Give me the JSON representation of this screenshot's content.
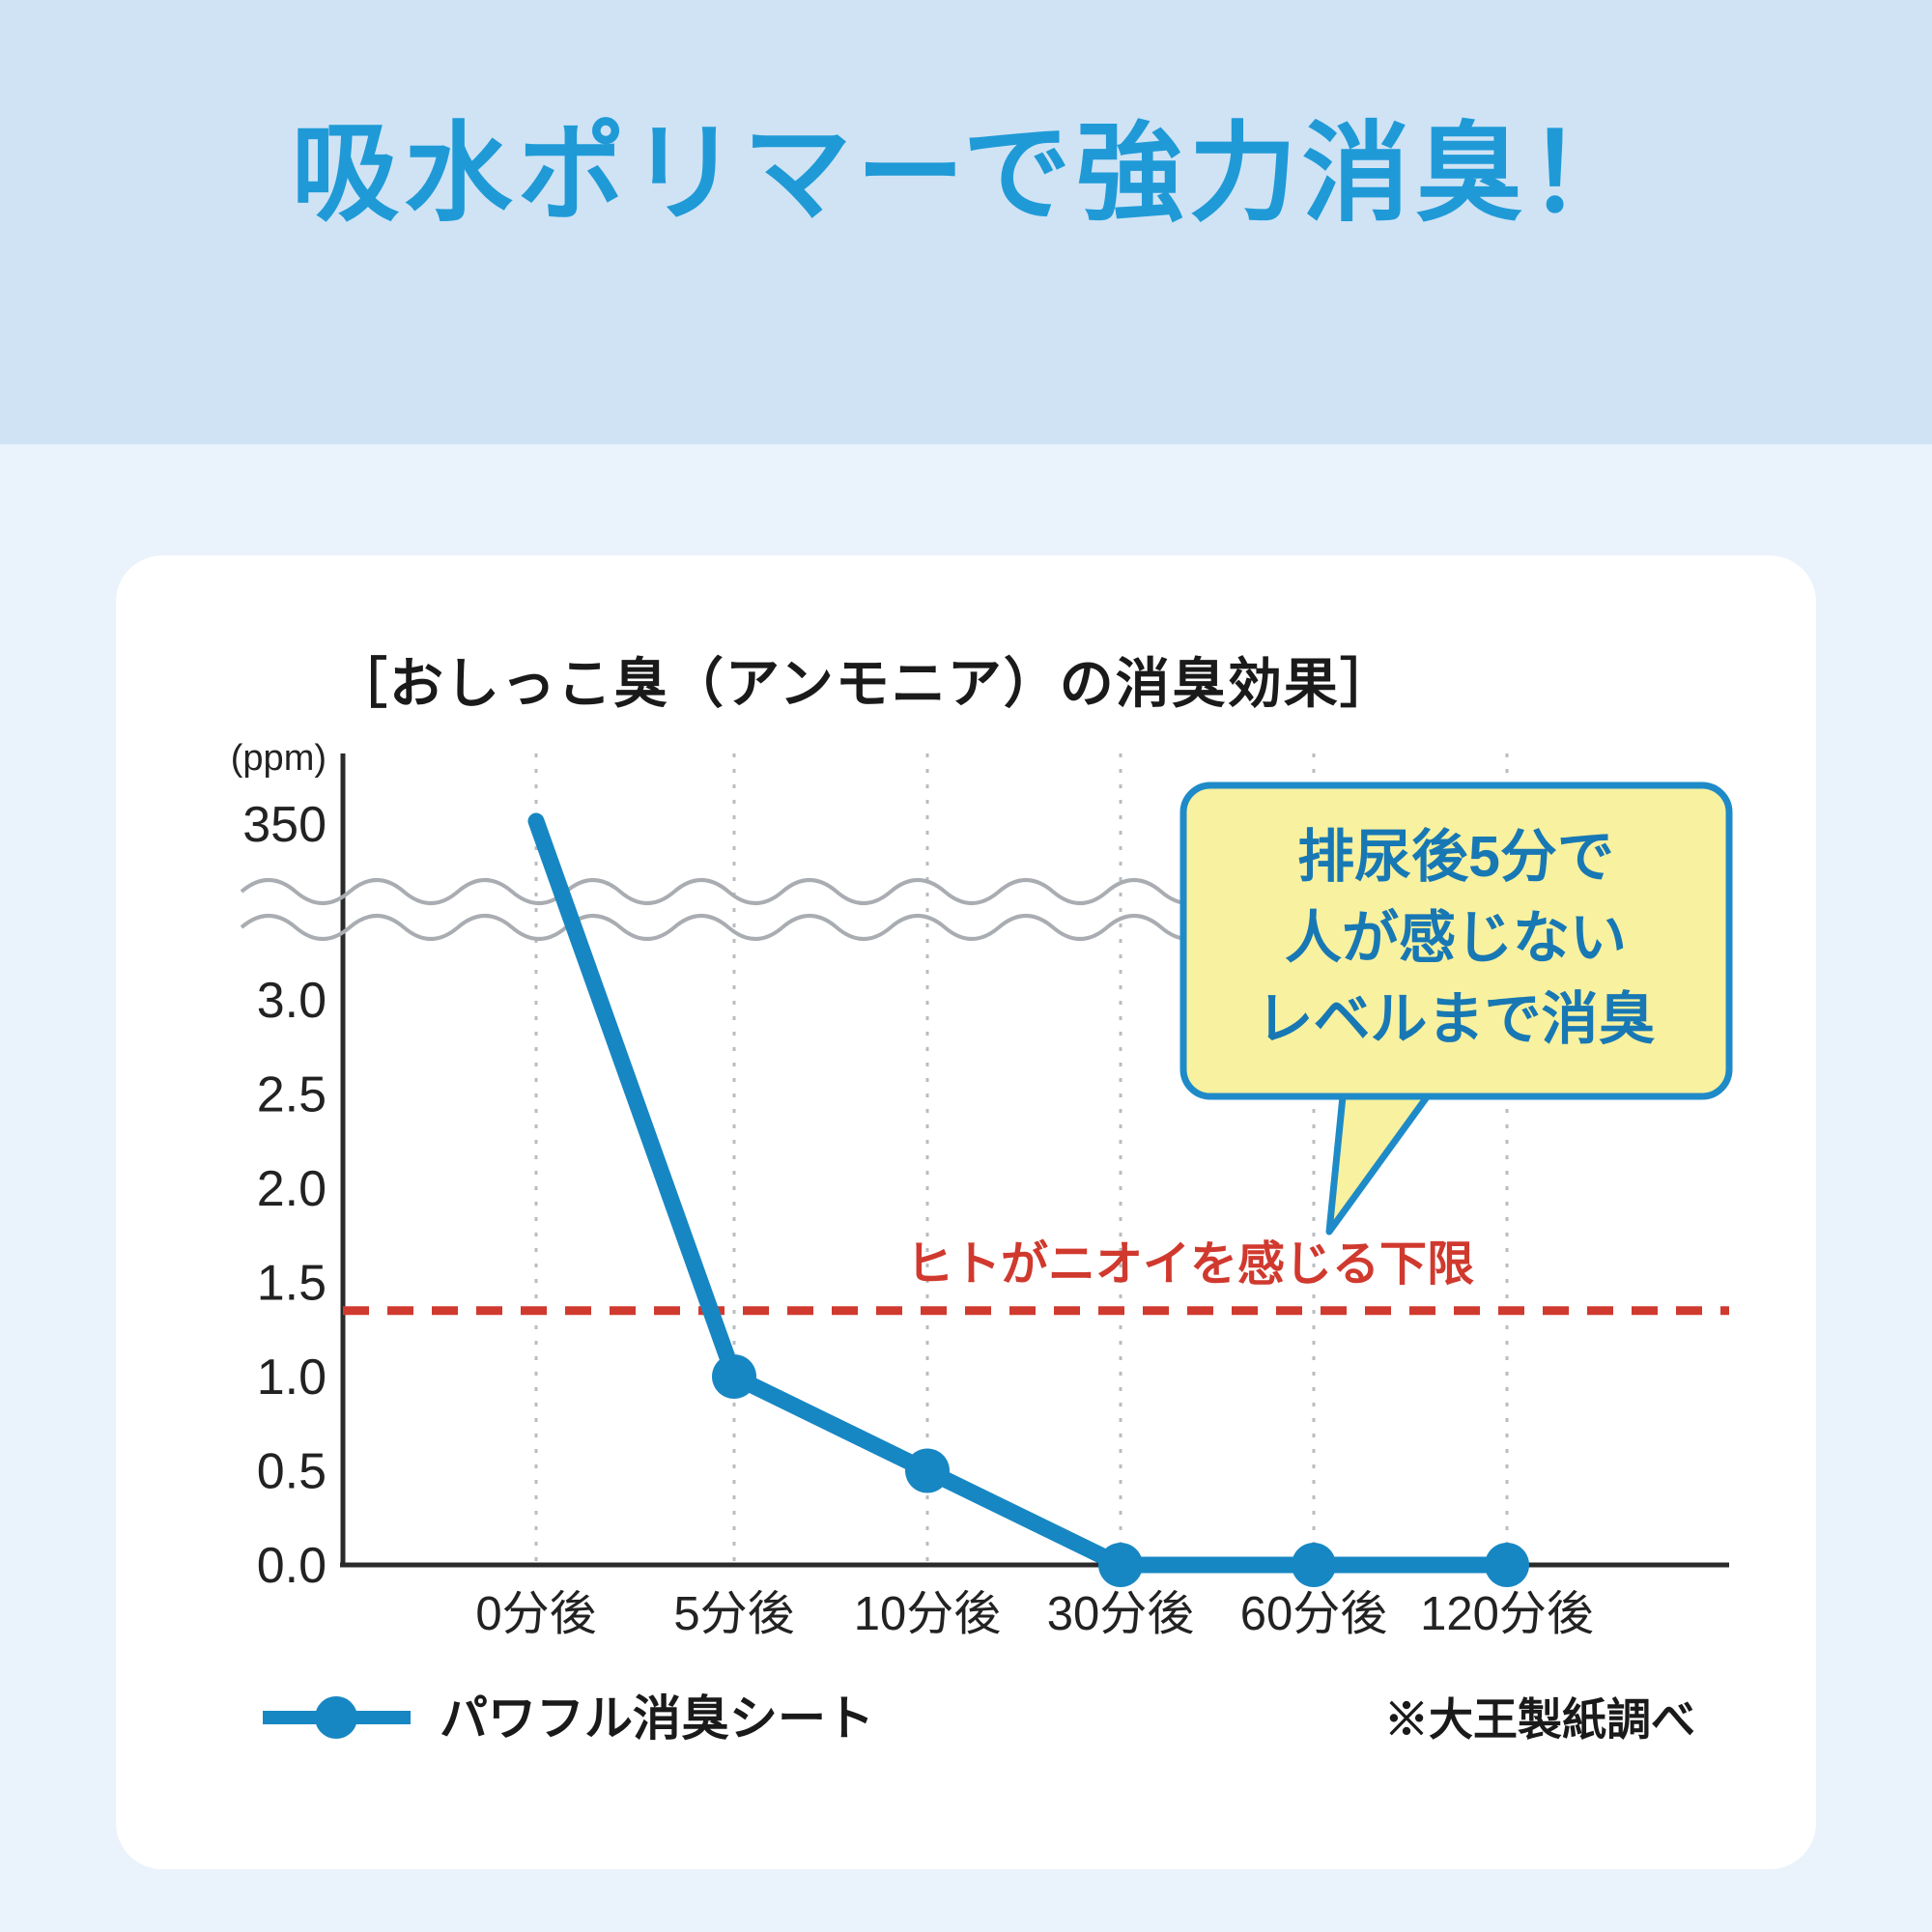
{
  "page": {
    "title": "吸水ポリマーで強力消臭！"
  },
  "colors": {
    "header_bg": "#cfe3f5",
    "page_bg": "#eaf2fb",
    "title_blue": "#1f9ad7",
    "series_blue": "#1787c3",
    "threshold_red": "#d0392e",
    "callout_bg": "#f8f19f",
    "callout_border": "#1e8bc8",
    "callout_text": "#1878b4",
    "axis_dark": "#2b2b2b",
    "grid_gray": "#b9bcc0",
    "wave_gray": "#a9adb2"
  },
  "chart_data": {
    "type": "line",
    "title": "［おしっこ臭（アンモニア）の消臭効果］",
    "xlabel": "",
    "ylabel": "(ppm)",
    "categories": [
      "0分後",
      "5分後",
      "10分後",
      "30分後",
      "60分後",
      "120分後"
    ],
    "series": [
      {
        "name": "パワフル消臭シート",
        "values": [
          350,
          1.0,
          0.5,
          0.0,
          0.0,
          0.0
        ]
      }
    ],
    "y_axis": {
      "unit": "(ppm)",
      "ticks": [
        "0.0",
        "0.5",
        "1.0",
        "1.5",
        "2.0",
        "2.5",
        "3.0"
      ],
      "top_tick": "350",
      "axis_break": true,
      "ylim_lower_section": [
        0,
        3.0
      ]
    },
    "threshold": {
      "value": 1.35,
      "label": "ヒトがニオイを感じる下限"
    },
    "callout": {
      "lines": [
        "排尿後5分で",
        "人が感じない",
        "レベルまで消臭"
      ]
    },
    "legend": [
      "パワフル消臭シート"
    ],
    "legend_position": "bottom-left",
    "footnote": "※大王製紙調べ",
    "grid": "vertical-dashed"
  }
}
